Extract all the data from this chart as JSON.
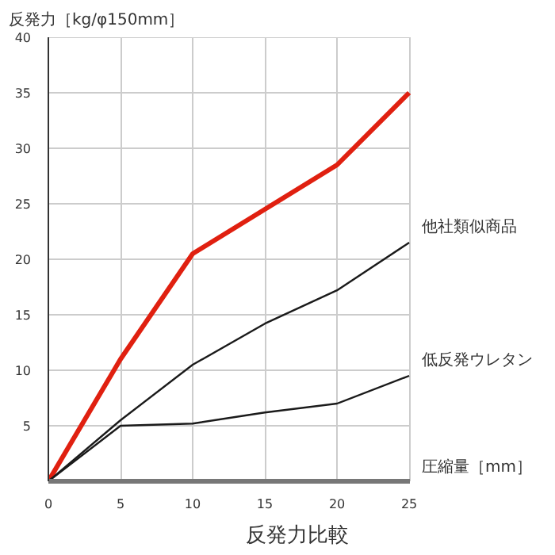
{
  "chart_data": {
    "type": "line",
    "title": "反発力比較",
    "xlabel": "圧縮量［mm］",
    "ylabel": "反発力［kg/φ150mm］",
    "x": [
      0,
      5,
      10,
      15,
      20,
      25
    ],
    "series": [
      {
        "color": "#e02010",
        "values": [
          0,
          11,
          20.5,
          24.5,
          28.5,
          35
        ]
      },
      {
        "name": "他社類似商品",
        "color": "#1a1a1a",
        "values": [
          0,
          5.5,
          10.5,
          14.2,
          17.2,
          21.5
        ]
      },
      {
        "name": "低反発ウレタン",
        "color": "#1a1a1a",
        "values": [
          0,
          5,
          5.2,
          6.2,
          7,
          9.5
        ]
      }
    ],
    "xlim": [
      0,
      25
    ],
    "ylim": [
      0,
      40
    ],
    "xticks": [
      0,
      5,
      10,
      15,
      20,
      25
    ],
    "yticks": [
      {
        "value": 0,
        "label": null
      },
      5,
      10,
      15,
      20,
      25,
      30,
      35,
      40
    ],
    "grid": true,
    "marker": "none",
    "line_style": "solid"
  }
}
